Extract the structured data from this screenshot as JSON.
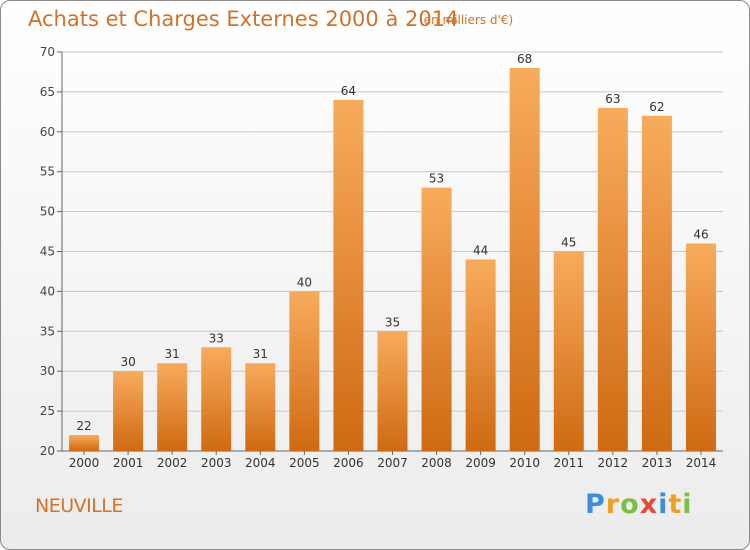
{
  "title": "Achats et Charges Externes 2000 à 2014",
  "subtitle": "(en milliers d'€)",
  "commune": "NEUVILLE",
  "logo": {
    "letters": [
      "P",
      "r",
      "o",
      "x",
      "i",
      "t",
      "i"
    ],
    "colors": [
      "#3a8fd6",
      "#f0a020",
      "#7bc043",
      "#e64a3a",
      "#3a8fd6",
      "#f0a020",
      "#7bc043"
    ]
  },
  "colors": {
    "bar": "#f08a2a",
    "bar_light": "#f8ab5c",
    "bar_dark": "#cf6a12",
    "text": "#d0722a",
    "grid": "#c8c8c8"
  },
  "chart_data": {
    "type": "bar",
    "title": "Achats et Charges Externes 2000 à 2014",
    "subtitle": "(en milliers d'€)",
    "categories": [
      "2000",
      "2001",
      "2002",
      "2003",
      "2004",
      "2005",
      "2006",
      "2007",
      "2008",
      "2009",
      "2010",
      "2011",
      "2012",
      "2013",
      "2014"
    ],
    "values": [
      22,
      30,
      31,
      33,
      31,
      40,
      64,
      35,
      53,
      44,
      68,
      45,
      63,
      62,
      46
    ],
    "ylim": [
      20,
      70
    ],
    "yticks": [
      20,
      25,
      30,
      35,
      40,
      45,
      50,
      55,
      60,
      65,
      70
    ],
    "grid": true,
    "data_labels": true
  }
}
